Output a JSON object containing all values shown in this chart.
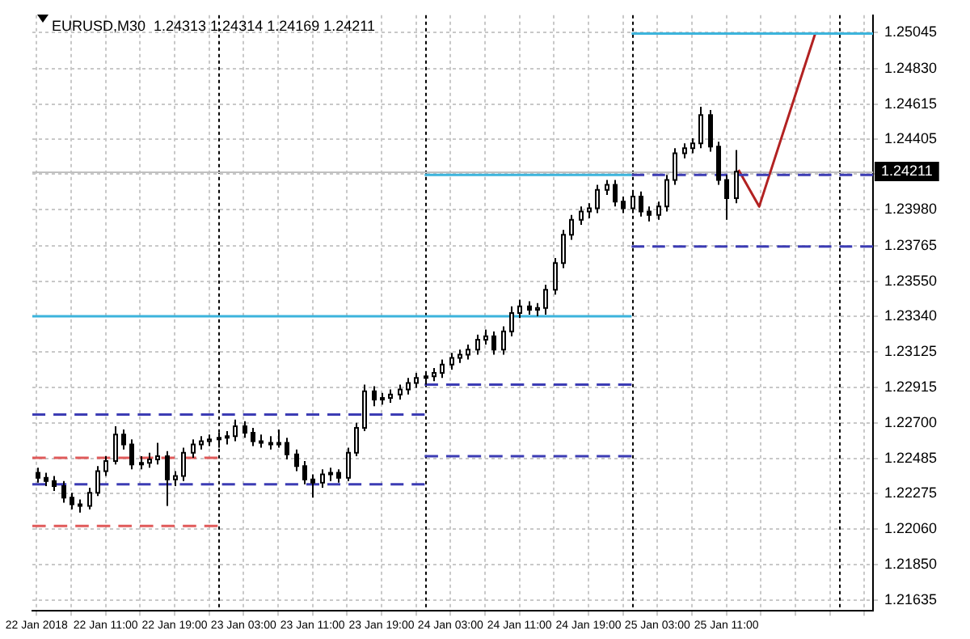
{
  "chart_data": {
    "type": "candlestick",
    "title": "EURUSD,M30  1.24313 1.24314 1.24169 1.24211",
    "color": "#000000",
    "colors": [
      "#000000",
      "#000000",
      "#000000",
      "#000000",
      "#000000",
      "#000000",
      "#ffffff",
      "#ffffff",
      "#ffffff",
      "#ffffff",
      "#000000",
      "#000000",
      "#ffffff",
      "#ffffff",
      "#ffffff",
      "#000000",
      "#ffffff",
      "#ffffff",
      "#ffffff",
      "#ffffff",
      "#ffffff",
      "#ffffff",
      "#ffffff",
      "#ffffff",
      "#000000",
      "#000000",
      "#000000",
      "#000000",
      "#ffffff",
      "#000000",
      "#000000",
      "#000000",
      "#000000",
      "#ffffff",
      "#ffffff",
      "#000000",
      "#ffffff",
      "#ffffff",
      "#ffffff",
      "#000000",
      "#ffffff",
      "#ffffff",
      "#ffffff",
      "#ffffff",
      "#ffffff",
      "#ffffff",
      "#ffffff",
      "#ffffff",
      "#ffffff",
      "#ffffff",
      "#ffffff",
      "#ffffff",
      "#ffffff",
      "#000000",
      "#ffffff",
      "#ffffff",
      "#ffffff",
      "#000000",
      "#ffffff",
      "#ffffff",
      "#ffffff",
      "#ffffff",
      "#ffffff",
      "#ffffff",
      "#ffffff",
      "#ffffff",
      "#ffffff",
      "#000000",
      "#000000",
      "#ffffff",
      "#000000",
      "#000000",
      "#ffffff",
      "#ffffff",
      "#ffffff",
      "#ffffff",
      "#ffffff",
      "#ffffff",
      "#000000",
      "#000000",
      "#000000",
      "#ffffff"
    ],
    "x": [
      "2018-01-22T03:00",
      "2018-01-22T04:00",
      "2018-01-22T05:00",
      "2018-01-22T06:00",
      "2018-01-22T07:00",
      "2018-01-22T08:00",
      "2018-01-22T09:00",
      "2018-01-22T10:00",
      "2018-01-22T11:00",
      "2018-01-22T12:00",
      "2018-01-22T13:00",
      "2018-01-22T14:00",
      "2018-01-22T15:00",
      "2018-01-22T16:00",
      "2018-01-22T17:00",
      "2018-01-22T18:00",
      "2018-01-22T19:00",
      "2018-01-22T20:00",
      "2018-01-22T21:00",
      "2018-01-22T22:00",
      "2018-01-22T23:00",
      "2018-01-23T00:00",
      "2018-01-23T01:00",
      "2018-01-23T02:00",
      "2018-01-23T03:00",
      "2018-01-23T04:00",
      "2018-01-23T05:00",
      "2018-01-23T06:00",
      "2018-01-23T07:00",
      "2018-01-23T08:00",
      "2018-01-23T09:00",
      "2018-01-23T10:00",
      "2018-01-23T11:00",
      "2018-01-23T12:00",
      "2018-01-23T13:00",
      "2018-01-23T14:00",
      "2018-01-23T15:00",
      "2018-01-23T16:00",
      "2018-01-23T17:00",
      "2018-01-23T18:00",
      "2018-01-23T19:00",
      "2018-01-23T20:00",
      "2018-01-23T21:00",
      "2018-01-23T22:00",
      "2018-01-23T23:00",
      "2018-01-24T00:00",
      "2018-01-24T01:00",
      "2018-01-24T02:00",
      "2018-01-24T03:00",
      "2018-01-24T04:00",
      "2018-01-24T05:00",
      "2018-01-24T06:00",
      "2018-01-24T07:00",
      "2018-01-24T08:00",
      "2018-01-24T09:00",
      "2018-01-24T10:00",
      "2018-01-24T11:00",
      "2018-01-24T12:00",
      "2018-01-24T13:00",
      "2018-01-24T14:00",
      "2018-01-24T15:00",
      "2018-01-24T16:00",
      "2018-01-24T17:00",
      "2018-01-24T18:00",
      "2018-01-24T19:00",
      "2018-01-24T20:00",
      "2018-01-24T21:00",
      "2018-01-24T22:00",
      "2018-01-24T23:00",
      "2018-01-25T00:00",
      "2018-01-25T01:00",
      "2018-01-25T02:00",
      "2018-01-25T03:00",
      "2018-01-25T04:00",
      "2018-01-25T05:00",
      "2018-01-25T06:00",
      "2018-01-25T07:00",
      "2018-01-25T08:00",
      "2018-01-25T09:00",
      "2018-01-25T10:00",
      "2018-01-25T11:00",
      "2018-01-25T12:00"
    ],
    "ohlc": [
      [
        1.224,
        1.2243,
        1.2234,
        1.2237
      ],
      [
        1.2237,
        1.224,
        1.2232,
        1.2235
      ],
      [
        1.2235,
        1.2238,
        1.2229,
        1.2232
      ],
      [
        1.2232,
        1.2235,
        1.2222,
        1.2225
      ],
      [
        1.2225,
        1.2228,
        1.2218,
        1.2221
      ],
      [
        1.2221,
        1.2224,
        1.2216,
        1.222
      ],
      [
        1.222,
        1.2231,
        1.2218,
        1.2228
      ],
      [
        1.2228,
        1.2244,
        1.2226,
        1.2241
      ],
      [
        1.2241,
        1.225,
        1.2238,
        1.2247
      ],
      [
        1.2247,
        1.2268,
        1.2245,
        1.2263
      ],
      [
        1.2263,
        1.2266,
        1.2254,
        1.2257
      ],
      [
        1.2257,
        1.226,
        1.2242,
        1.2245
      ],
      [
        1.2245,
        1.225,
        1.2242,
        1.2246
      ],
      [
        1.2246,
        1.2252,
        1.2243,
        1.2248
      ],
      [
        1.2248,
        1.2258,
        1.2245,
        1.225
      ],
      [
        1.225,
        1.2253,
        1.222,
        1.2236
      ],
      [
        1.2236,
        1.2241,
        1.2232,
        1.2238
      ],
      [
        1.2238,
        1.2255,
        1.2235,
        1.2252
      ],
      [
        1.2252,
        1.226,
        1.2249,
        1.2257
      ],
      [
        1.2257,
        1.2262,
        1.2254,
        1.2259
      ],
      [
        1.2259,
        1.2263,
        1.2256,
        1.226
      ],
      [
        1.226,
        1.2264,
        1.2255,
        1.2261
      ],
      [
        1.2261,
        1.2265,
        1.2257,
        1.2262
      ],
      [
        1.2262,
        1.2272,
        1.2259,
        1.2268
      ],
      [
        1.2268,
        1.2271,
        1.2261,
        1.2264
      ],
      [
        1.2264,
        1.2267,
        1.2256,
        1.2259
      ],
      [
        1.2259,
        1.2263,
        1.2255,
        1.2258
      ],
      [
        1.2258,
        1.2262,
        1.2254,
        1.2257
      ],
      [
        1.2257,
        1.2266,
        1.2255,
        1.2258
      ],
      [
        1.2258,
        1.2261,
        1.2248,
        1.2251
      ],
      [
        1.2251,
        1.2254,
        1.2241,
        1.2244
      ],
      [
        1.2244,
        1.2247,
        1.2233,
        1.2236
      ],
      [
        1.2236,
        1.2239,
        1.2225,
        1.2234
      ],
      [
        1.2234,
        1.2242,
        1.2231,
        1.2239
      ],
      [
        1.2239,
        1.2243,
        1.2235,
        1.224
      ],
      [
        1.224,
        1.2242,
        1.2234,
        1.2237
      ],
      [
        1.2237,
        1.2255,
        1.2235,
        1.2252
      ],
      [
        1.2252,
        1.227,
        1.225,
        1.2267
      ],
      [
        1.2267,
        1.2293,
        1.2265,
        1.2289
      ],
      [
        1.2289,
        1.2292,
        1.228,
        1.2284
      ],
      [
        1.2284,
        1.2288,
        1.2281,
        1.2285
      ],
      [
        1.2285,
        1.229,
        1.2282,
        1.2287
      ],
      [
        1.2287,
        1.2293,
        1.2284,
        1.229
      ],
      [
        1.229,
        1.2297,
        1.2287,
        1.2294
      ],
      [
        1.2294,
        1.23,
        1.2291,
        1.2297
      ],
      [
        1.2297,
        1.2301,
        1.2293,
        1.2298
      ],
      [
        1.2298,
        1.2303,
        1.2295,
        1.23
      ],
      [
        1.23,
        1.2308,
        1.2297,
        1.2305
      ],
      [
        1.2305,
        1.2312,
        1.2302,
        1.2309
      ],
      [
        1.2309,
        1.2314,
        1.2306,
        1.2311
      ],
      [
        1.2311,
        1.2317,
        1.2308,
        1.2314
      ],
      [
        1.2314,
        1.2323,
        1.2311,
        1.232
      ],
      [
        1.232,
        1.2326,
        1.2317,
        1.2322
      ],
      [
        1.2322,
        1.2325,
        1.2311,
        1.2314
      ],
      [
        1.2314,
        1.2328,
        1.2311,
        1.2325
      ],
      [
        1.2325,
        1.234,
        1.2322,
        1.2336
      ],
      [
        1.2336,
        1.2344,
        1.2333,
        1.234
      ],
      [
        1.234,
        1.2343,
        1.2335,
        1.2338
      ],
      [
        1.2338,
        1.2342,
        1.2334,
        1.2339
      ],
      [
        1.2339,
        1.2353,
        1.2335,
        1.235
      ],
      [
        1.235,
        1.2369,
        1.2347,
        1.2366
      ],
      [
        1.2366,
        1.2386,
        1.2363,
        1.2383
      ],
      [
        1.2383,
        1.2395,
        1.238,
        1.2392
      ],
      [
        1.2392,
        1.24,
        1.2389,
        1.2397
      ],
      [
        1.2397,
        1.2402,
        1.2393,
        1.2399
      ],
      [
        1.2399,
        1.2413,
        1.2396,
        1.241
      ],
      [
        1.241,
        1.2416,
        1.2407,
        1.2413
      ],
      [
        1.2413,
        1.2416,
        1.24,
        1.2403
      ],
      [
        1.2403,
        1.2406,
        1.2396,
        1.2399
      ],
      [
        1.2399,
        1.2409,
        1.2396,
        1.2406
      ],
      [
        1.2406,
        1.2409,
        1.2394,
        1.2397
      ],
      [
        1.2397,
        1.24,
        1.2391,
        1.2395
      ],
      [
        1.2395,
        1.2403,
        1.2392,
        1.24
      ],
      [
        1.24,
        1.2419,
        1.2397,
        1.2416
      ],
      [
        1.2416,
        1.2435,
        1.2413,
        1.2432
      ],
      [
        1.2432,
        1.2438,
        1.2429,
        1.2435
      ],
      [
        1.2435,
        1.2441,
        1.2432,
        1.2438
      ],
      [
        1.2438,
        1.246,
        1.2435,
        1.2455
      ],
      [
        1.2455,
        1.2458,
        1.2433,
        1.2436
      ],
      [
        1.2436,
        1.2439,
        1.2413,
        1.2416
      ],
      [
        1.2416,
        1.2419,
        1.2392,
        1.2405
      ],
      [
        1.2405,
        1.2434,
        1.2402,
        1.2421
      ]
    ],
    "series": [
      {
        "type": "line",
        "color": "#3cb4dc",
        "line_style": "solid",
        "x": [
          "2018-01-22T02:30",
          "2018-01-25T00:00"
        ],
        "values": [
          1.2334,
          1.2334
        ]
      },
      {
        "type": "line",
        "color": "#3cb4dc",
        "line_style": "solid",
        "x": [
          "2018-01-24T00:00",
          "2018-01-25T00:00"
        ],
        "values": [
          1.2419,
          1.2419
        ]
      },
      {
        "type": "line",
        "color": "#3cb4dc",
        "line_style": "solid",
        "x": [
          "2018-01-25T00:00",
          "2018-01-26T04:00"
        ],
        "values": [
          1.2504,
          1.2504
        ]
      },
      {
        "type": "line",
        "color": "#3c3cb4",
        "line_style": "dashed",
        "x": [
          "2018-01-22T02:30",
          "2018-01-24T00:00"
        ],
        "values": [
          1.2275,
          1.2275
        ]
      },
      {
        "type": "line",
        "color": "#3c3cb4",
        "line_style": "dashed",
        "x": [
          "2018-01-22T02:30",
          "2018-01-24T00:00"
        ],
        "values": [
          1.2233,
          1.2233
        ]
      },
      {
        "type": "line",
        "color": "#3c3cb4",
        "line_style": "dashed",
        "x": [
          "2018-01-24T00:00",
          "2018-01-25T00:00"
        ],
        "values": [
          1.2293,
          1.2293
        ]
      },
      {
        "type": "line",
        "color": "#3c3cb4",
        "line_style": "dashed",
        "x": [
          "2018-01-24T00:00",
          "2018-01-25T00:00"
        ],
        "values": [
          1.225,
          1.225
        ]
      },
      {
        "type": "line",
        "color": "#3c3cb4",
        "line_style": "dashed",
        "x": [
          "2018-01-25T00:00",
          "2018-01-26T04:00"
        ],
        "values": [
          1.2419,
          1.2419
        ]
      },
      {
        "type": "line",
        "color": "#3c3cb4",
        "line_style": "dashed",
        "x": [
          "2018-01-25T00:00",
          "2018-01-26T04:00"
        ],
        "values": [
          1.2376,
          1.2376
        ]
      },
      {
        "type": "line",
        "color": "#e05a5a",
        "line_style": "dashed",
        "x": [
          "2018-01-22T02:30",
          "2018-01-23T00:00"
        ],
        "values": [
          1.2249,
          1.2249
        ]
      },
      {
        "type": "line",
        "color": "#e05a5a",
        "line_style": "dashed",
        "x": [
          "2018-01-22T02:30",
          "2018-01-23T00:00"
        ],
        "values": [
          1.2208,
          1.2208
        ]
      },
      {
        "type": "line",
        "color": "#b22222",
        "line_style": "solid",
        "x": [
          "2018-01-25T12:24",
          "2018-01-25T14:48",
          "2018-01-25T21:18"
        ],
        "values": [
          1.2422,
          1.24,
          1.2504
        ]
      }
    ],
    "ref_lines": [
      {
        "axis": "x",
        "value": "2018-01-23T00:00",
        "color": "#000000",
        "line_style": "dotted"
      },
      {
        "axis": "x",
        "value": "2018-01-24T00:00",
        "color": "#000000",
        "line_style": "dotted"
      },
      {
        "axis": "x",
        "value": "2018-01-25T00:00",
        "color": "#000000",
        "line_style": "dotted"
      },
      {
        "axis": "x",
        "value": "2018-01-26T00:00",
        "color": "#000000",
        "line_style": "dotted"
      },
      {
        "axis": "y",
        "value": 1.24211,
        "label": "1.24211",
        "color": "#c0c0c0",
        "line_style": "solid"
      }
    ],
    "xlim": [
      "2018-01-22T02:30",
      "2018-01-26T04:00"
    ],
    "xticks": [
      {
        "value": "2018-01-22T03:00",
        "label": "22 Jan 2018"
      },
      {
        "value": "2018-01-22T07:00",
        "label": null
      },
      {
        "value": "2018-01-22T11:00",
        "label": "22 Jan 11:00"
      },
      {
        "value": "2018-01-22T15:00",
        "label": null
      },
      {
        "value": "2018-01-22T19:00",
        "label": "22 Jan 19:00"
      },
      {
        "value": "2018-01-22T23:00",
        "label": null
      },
      {
        "value": "2018-01-23T03:00",
        "label": "23 Jan 03:00"
      },
      {
        "value": "2018-01-23T07:00",
        "label": null
      },
      {
        "value": "2018-01-23T11:00",
        "label": "23 Jan 11:00"
      },
      {
        "value": "2018-01-23T15:00",
        "label": null
      },
      {
        "value": "2018-01-23T19:00",
        "label": "23 Jan 19:00"
      },
      {
        "value": "2018-01-23T23:00",
        "label": null
      },
      {
        "value": "2018-01-24T03:00",
        "label": "24 Jan 03:00"
      },
      {
        "value": "2018-01-24T07:00",
        "label": null
      },
      {
        "value": "2018-01-24T11:00",
        "label": "24 Jan 11:00"
      },
      {
        "value": "2018-01-24T15:00",
        "label": null
      },
      {
        "value": "2018-01-24T19:00",
        "label": "24 Jan 19:00"
      },
      {
        "value": "2018-01-24T23:00",
        "label": null
      },
      {
        "value": "2018-01-25T03:00",
        "label": "25 Jan 03:00"
      },
      {
        "value": "2018-01-25T07:00",
        "label": null
      },
      {
        "value": "2018-01-25T11:00",
        "label": "25 Jan 11:00"
      },
      {
        "value": "2018-01-25T15:00",
        "label": null
      },
      {
        "value": "2018-01-25T19:00",
        "label": null
      },
      {
        "value": "2018-01-25T23:00",
        "label": null
      },
      {
        "value": "2018-01-26T03:00",
        "label": null
      }
    ],
    "ylim": [
      1.2157,
      1.2515
    ],
    "yticks": [
      {
        "value": 1.21635,
        "label": "1.21635"
      },
      {
        "value": 1.2185,
        "label": "1.21850"
      },
      {
        "value": 1.2206,
        "label": "1.22060"
      },
      {
        "value": 1.22275,
        "label": "1.22275"
      },
      {
        "value": 1.22485,
        "label": "1.22485"
      },
      {
        "value": 1.227,
        "label": "1.22700"
      },
      {
        "value": 1.22915,
        "label": "1.22915"
      },
      {
        "value": 1.23125,
        "label": "1.23125"
      },
      {
        "value": 1.2334,
        "label": "1.23340"
      },
      {
        "value": 1.2355,
        "label": "1.23550"
      },
      {
        "value": 1.23765,
        "label": "1.23765"
      },
      {
        "value": 1.2398,
        "label": "1.23980"
      },
      {
        "value": 1.24195,
        "label": null
      },
      {
        "value": 1.24405,
        "label": "1.24405"
      },
      {
        "value": 1.24615,
        "label": "1.24615"
      },
      {
        "value": 1.2483,
        "label": "1.24830"
      },
      {
        "value": 1.25045,
        "label": "1.25045"
      }
    ],
    "grid": true,
    "legend": false,
    "marker": "none"
  }
}
